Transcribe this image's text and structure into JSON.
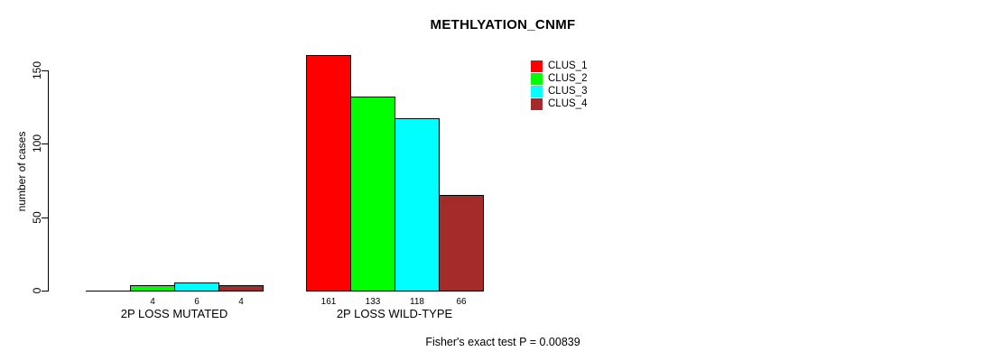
{
  "chart_data": {
    "type": "bar",
    "title": "METHLYATION_CNMF",
    "ylabel": "number of cases",
    "xlabel": "",
    "ylim": [
      0,
      150
    ],
    "yticks": [
      0,
      50,
      100,
      150
    ],
    "grid": false,
    "legend_position": "top-right",
    "categories": [
      "2P LOSS MUTATED",
      "2P LOSS WILD-TYPE"
    ],
    "series": [
      {
        "name": "CLUS_1",
        "color": "#ff0000",
        "values": [
          0,
          161
        ]
      },
      {
        "name": "CLUS_2",
        "color": "#00ff00",
        "values": [
          4,
          133
        ]
      },
      {
        "name": "CLUS_3",
        "color": "#00ffff",
        "values": [
          6,
          118
        ]
      },
      {
        "name": "CLUS_4",
        "color": "#a52a2a",
        "values": [
          4,
          66
        ]
      }
    ],
    "annotation": "Fisher's exact test P = 0.00839"
  },
  "colors": {
    "background": "#ffffff",
    "axis": "#000000",
    "text": "#000000"
  }
}
